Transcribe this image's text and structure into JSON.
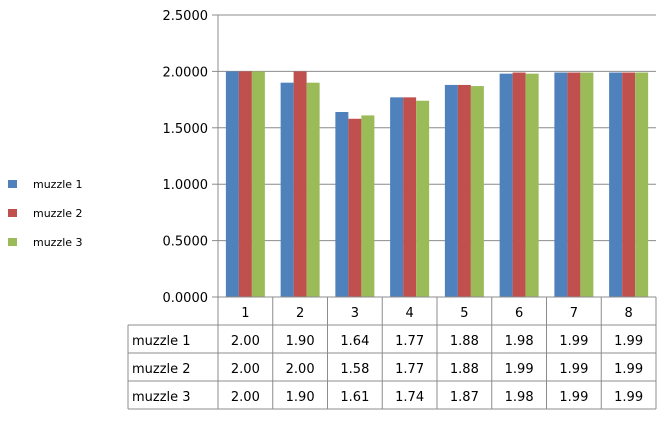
{
  "chart_data": {
    "type": "bar",
    "categories": [
      "1",
      "2",
      "3",
      "4",
      "5",
      "6",
      "7",
      "8"
    ],
    "series": [
      {
        "name": "muzzle 1",
        "color": "#4f81bd",
        "values": [
          2.0,
          1.9,
          1.64,
          1.77,
          1.88,
          1.98,
          1.99,
          1.99
        ]
      },
      {
        "name": "muzzle 2",
        "color": "#c0504d",
        "values": [
          2.0,
          2.0,
          1.58,
          1.77,
          1.88,
          1.99,
          1.99,
          1.99
        ]
      },
      {
        "name": "muzzle 3",
        "color": "#9bbb59",
        "values": [
          2.0,
          1.9,
          1.61,
          1.74,
          1.87,
          1.98,
          1.99,
          1.99
        ]
      }
    ],
    "table_values": [
      [
        "2.00",
        "1.90",
        "1.64",
        "1.77",
        "1.88",
        "1.98",
        "1.99",
        "1.99"
      ],
      [
        "2.00",
        "2.00",
        "1.58",
        "1.77",
        "1.88",
        "1.99",
        "1.99",
        "1.99"
      ],
      [
        "2.00",
        "1.90",
        "1.61",
        "1.74",
        "1.87",
        "1.98",
        "1.99",
        "1.99"
      ]
    ],
    "ylim": [
      0,
      2.5
    ],
    "yticks": [
      "0.0000",
      "0.5000",
      "1.0000",
      "1.5000",
      "2.0000",
      "2.5000"
    ],
    "grid": true,
    "legend_position": "left",
    "data_table": true
  }
}
